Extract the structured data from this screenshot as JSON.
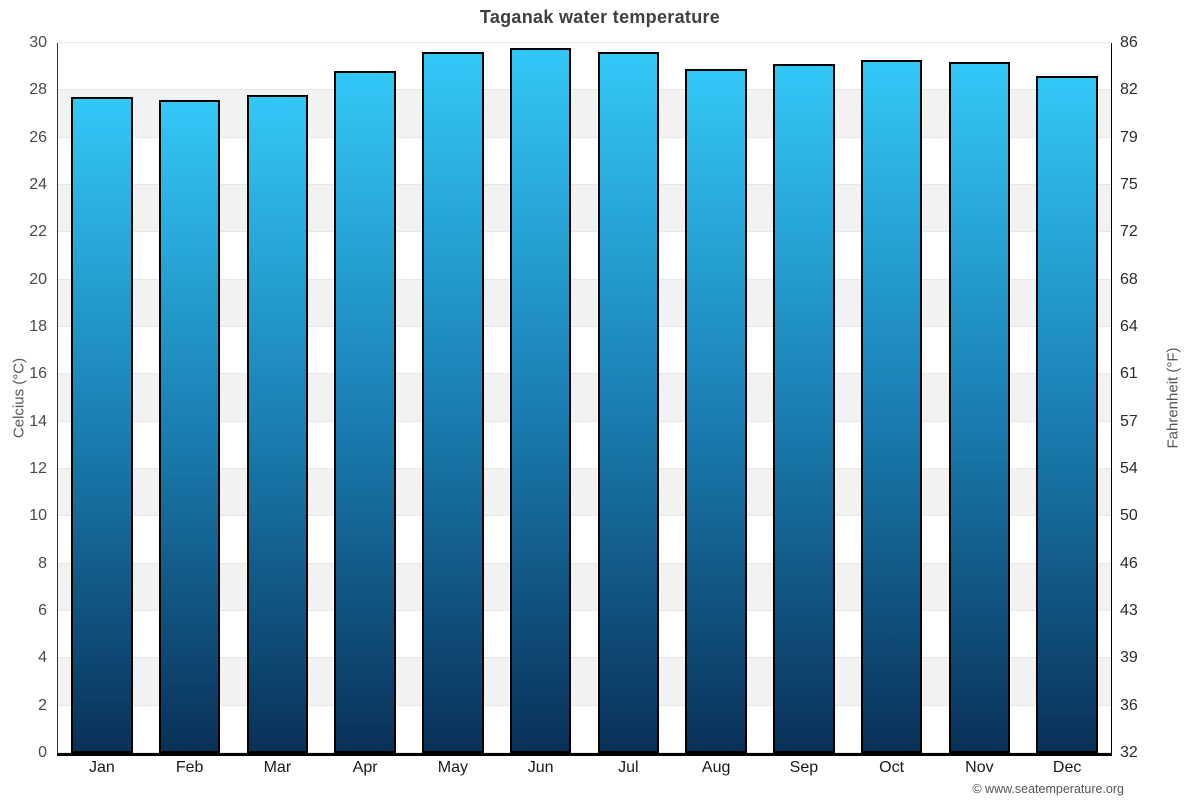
{
  "title": "Taganak water temperature",
  "footer": "© www.seatemperature.org",
  "chart_data": {
    "type": "bar",
    "title": "Taganak water temperature",
    "categories": [
      "Jan",
      "Feb",
      "Mar",
      "Apr",
      "May",
      "Jun",
      "Jul",
      "Aug",
      "Sep",
      "Oct",
      "Nov",
      "Dec"
    ],
    "values": [
      27.7,
      27.6,
      27.8,
      28.8,
      29.6,
      29.8,
      29.6,
      28.9,
      29.1,
      29.3,
      29.2,
      28.6
    ],
    "series_name": "Water temperature",
    "xlabel": "",
    "ylabel_left": "Celcius (°C)",
    "ylabel_right": "Fahrenheit (°F)",
    "ylim": [
      0,
      30
    ],
    "yticks_c": [
      0,
      2,
      4,
      6,
      8,
      10,
      12,
      14,
      16,
      18,
      20,
      22,
      24,
      26,
      28,
      30
    ],
    "yticks_f": [
      32,
      36,
      39,
      43,
      46,
      50,
      54,
      57,
      61,
      64,
      68,
      72,
      75,
      79,
      82,
      86
    ],
    "legend": "none",
    "grid": "horizontal-bands-alternating",
    "colors": {
      "bar_gradient_top": "#33c8f6",
      "bar_gradient_mid": "#1a7fb3",
      "bar_gradient_bottom": "#093158",
      "bar_border": "#000000",
      "band_light": "#ffffff",
      "band_dark": "#f2f2f2",
      "gridline": "#e7e7e7",
      "axis_line": "#000000",
      "title_text": "#3f3f3f",
      "tick_text": "#4a4a4a"
    }
  }
}
